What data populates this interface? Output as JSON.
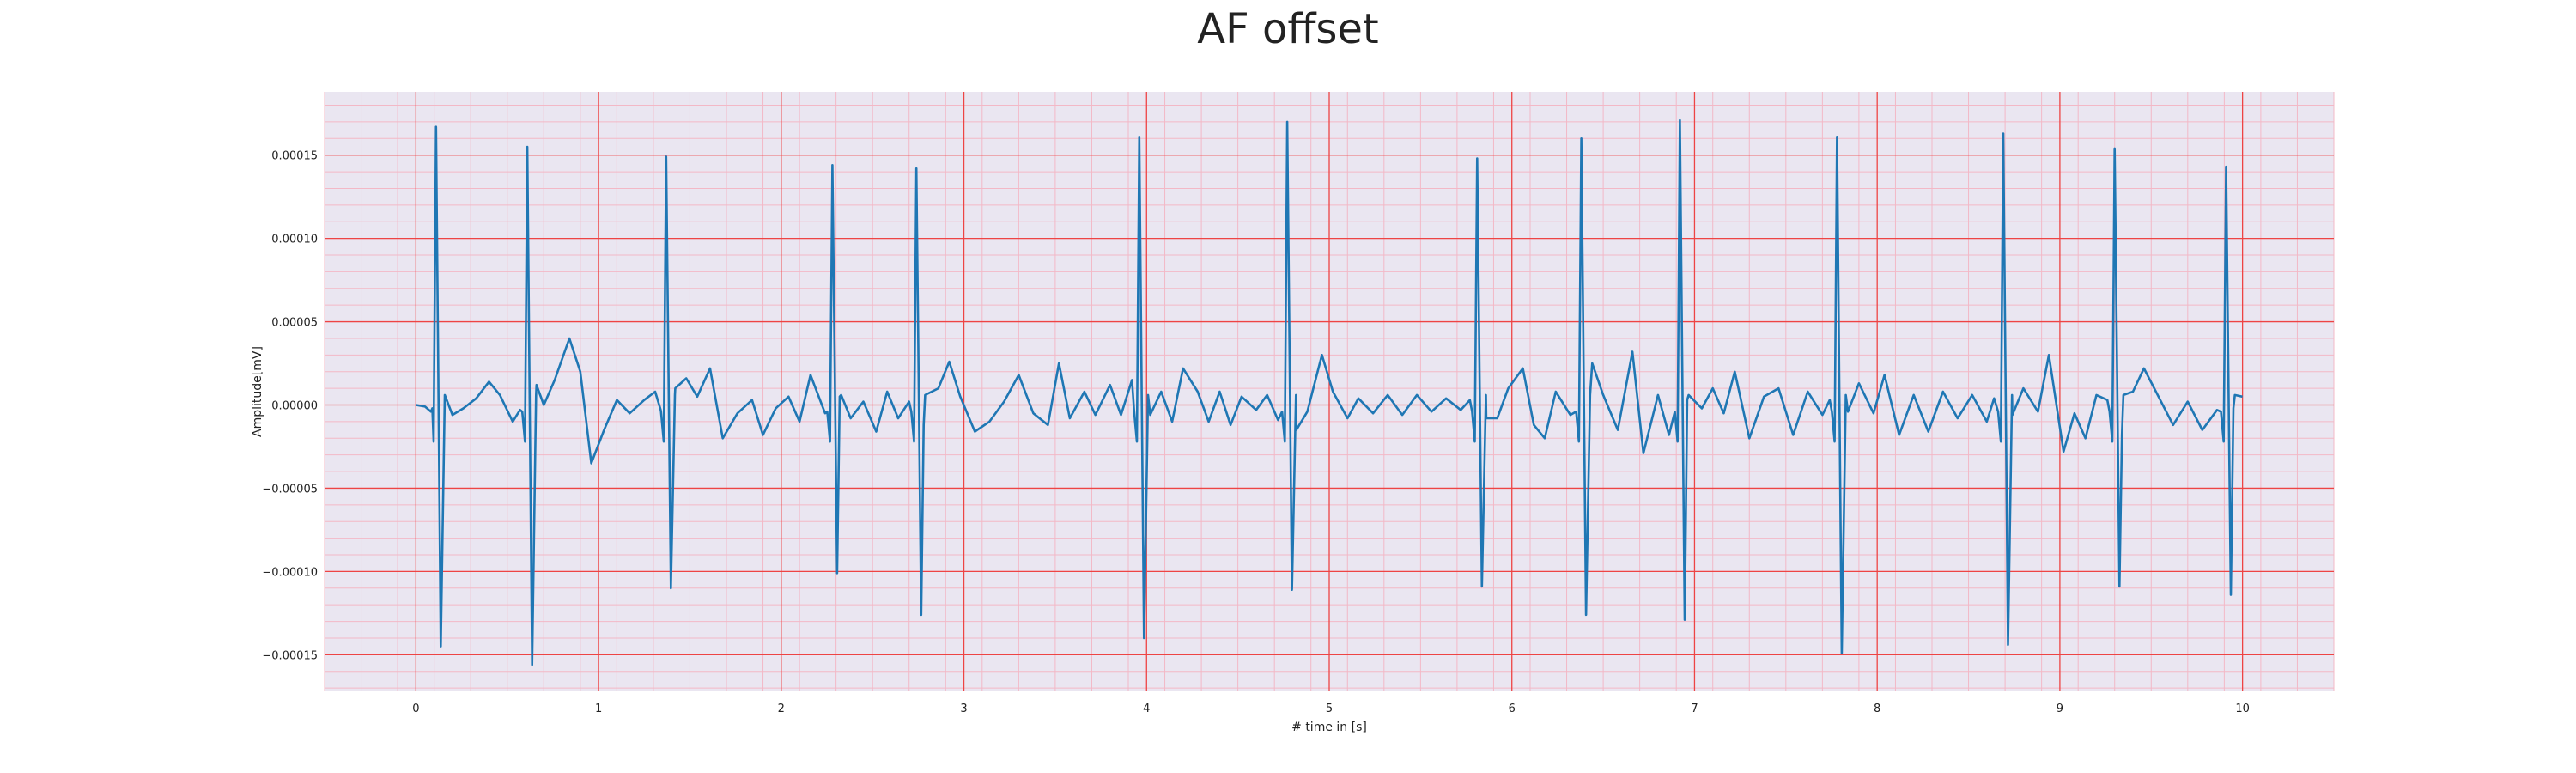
{
  "chart_data": {
    "type": "line",
    "title": "AF offset",
    "xlabel": "# time in [s]",
    "ylabel": "Amplitude[mV]",
    "xlim": [
      -0.5,
      10.5
    ],
    "ylim": [
      -0.000172,
      0.000188
    ],
    "x_ticks": [
      0,
      1,
      2,
      3,
      4,
      5,
      6,
      7,
      8,
      9,
      10
    ],
    "x_tick_labels": [
      "0",
      "1",
      "2",
      "3",
      "4",
      "5",
      "6",
      "7",
      "8",
      "9",
      "10"
    ],
    "y_ticks": [
      -0.00015,
      -0.0001,
      -5e-05,
      0,
      5e-05,
      0.0001,
      0.00015
    ],
    "y_tick_labels": [
      "−0.00015",
      "−0.00010",
      "−0.00005",
      "0.00000",
      "0.00005",
      "0.00010",
      "0.00015"
    ],
    "grid": true,
    "colors": {
      "line": "#1f77b4",
      "plot_bg": "#eae6f1",
      "major_grid": "#ee4444",
      "minor_grid": "#f3b8c6"
    },
    "series": [
      {
        "beats": [
          {
            "t": 0.11,
            "peak": 0.000167,
            "trough": -0.000145
          },
          {
            "t": 0.61,
            "peak": 0.000155,
            "trough": -0.000156
          },
          {
            "t": 1.37,
            "peak": 0.000149,
            "trough": -0.00011
          },
          {
            "t": 2.28,
            "peak": 0.000144,
            "trough": -0.000101
          },
          {
            "t": 2.74,
            "peak": 0.000142,
            "trough": -0.000126
          },
          {
            "t": 3.96,
            "peak": 0.000161,
            "trough": -0.00014
          },
          {
            "t": 4.77,
            "peak": 0.00017,
            "trough": -0.000111
          },
          {
            "t": 5.81,
            "peak": 0.000148,
            "trough": -0.000109
          },
          {
            "t": 6.38,
            "peak": 0.00016,
            "trough": -0.000126
          },
          {
            "t": 6.92,
            "peak": 0.000171,
            "trough": -0.000129
          },
          {
            "t": 7.78,
            "peak": 0.000161,
            "trough": -0.000149
          },
          {
            "t": 8.69,
            "peak": 0.000163,
            "trough": -0.000144
          },
          {
            "t": 9.3,
            "peak": 0.000154,
            "trough": -0.000109
          },
          {
            "t": 9.91,
            "peak": 0.000143,
            "trough": -0.000114
          }
        ],
        "baseline": [
          [
            0.0,
            0.0
          ],
          [
            0.05,
            -1e-06
          ],
          [
            0.09,
            -2e-06
          ],
          [
            0.2,
            -6e-06
          ],
          [
            0.26,
            -2e-06
          ],
          [
            0.33,
            4e-06
          ],
          [
            0.4,
            1.4e-05
          ],
          [
            0.46,
            6e-06
          ],
          [
            0.53,
            -1e-05
          ],
          [
            0.57,
            -3e-06
          ],
          [
            0.66,
            1.2e-05
          ],
          [
            0.7,
            0.0
          ],
          [
            0.76,
            1.5e-05
          ],
          [
            0.84,
            4e-05
          ],
          [
            0.9,
            2e-05
          ],
          [
            0.96,
            -3.5e-05
          ],
          [
            1.03,
            -1.5e-05
          ],
          [
            1.1,
            3e-06
          ],
          [
            1.17,
            -5e-06
          ],
          [
            1.25,
            3e-06
          ],
          [
            1.31,
            8e-06
          ],
          [
            1.34,
            -3e-06
          ],
          [
            1.42,
            1e-05
          ],
          [
            1.48,
            1.6e-05
          ],
          [
            1.54,
            5e-06
          ],
          [
            1.61,
            2.2e-05
          ],
          [
            1.68,
            -2e-05
          ],
          [
            1.76,
            -5e-06
          ],
          [
            1.84,
            3e-06
          ],
          [
            1.9,
            -1.8e-05
          ],
          [
            1.97,
            -2e-06
          ],
          [
            2.04,
            5e-06
          ],
          [
            2.1,
            -1e-05
          ],
          [
            2.16,
            1.8e-05
          ],
          [
            2.24,
            -5e-06
          ],
          [
            2.32,
            5e-06
          ],
          [
            2.38,
            -8e-06
          ],
          [
            2.45,
            2e-06
          ],
          [
            2.52,
            -1.6e-05
          ],
          [
            2.58,
            8e-06
          ],
          [
            2.64,
            -8e-06
          ],
          [
            2.7,
            2e-06
          ],
          [
            2.78,
            -1.2e-05
          ],
          [
            2.86,
            1e-05
          ],
          [
            2.92,
            2.6e-05
          ],
          [
            2.98,
            5e-06
          ],
          [
            3.06,
            -1.6e-05
          ],
          [
            3.14,
            -1e-05
          ],
          [
            3.22,
            2e-06
          ],
          [
            3.3,
            1.8e-05
          ],
          [
            3.38,
            -5e-06
          ],
          [
            3.46,
            -1.2e-05
          ],
          [
            3.52,
            2.5e-05
          ],
          [
            3.58,
            -8e-06
          ],
          [
            3.66,
            8e-06
          ],
          [
            3.72,
            -6e-06
          ],
          [
            3.8,
            1.2e-05
          ],
          [
            3.86,
            -6e-06
          ],
          [
            3.92,
            1.5e-05
          ],
          [
            4.02,
            -6e-06
          ],
          [
            4.08,
            8e-06
          ],
          [
            4.14,
            -1e-05
          ],
          [
            4.2,
            2.2e-05
          ],
          [
            4.28,
            8e-06
          ],
          [
            4.34,
            -1e-05
          ],
          [
            4.4,
            8e-06
          ],
          [
            4.46,
            -1.2e-05
          ],
          [
            4.52,
            5e-06
          ],
          [
            4.6,
            -3e-06
          ],
          [
            4.66,
            6e-06
          ],
          [
            4.72,
            -9e-06
          ],
          [
            4.82,
            -1.5e-05
          ],
          [
            4.88,
            -4e-06
          ],
          [
            4.96,
            3e-05
          ],
          [
            5.02,
            8e-06
          ],
          [
            5.1,
            -8e-06
          ],
          [
            5.16,
            4e-06
          ],
          [
            5.24,
            -5e-06
          ],
          [
            5.32,
            6e-06
          ],
          [
            5.4,
            -6e-06
          ],
          [
            5.48,
            6e-06
          ],
          [
            5.56,
            -4e-06
          ],
          [
            5.64,
            4e-06
          ],
          [
            5.72,
            -3e-06
          ],
          [
            5.77,
            3e-06
          ],
          [
            5.86,
            -8e-06
          ],
          [
            5.92,
            -8e-06
          ],
          [
            5.98,
            1e-05
          ],
          [
            6.06,
            2.2e-05
          ],
          [
            6.12,
            -1.2e-05
          ],
          [
            6.18,
            -2e-05
          ],
          [
            6.24,
            8e-06
          ],
          [
            6.32,
            -6e-06
          ],
          [
            6.44,
            2.5e-05
          ],
          [
            6.5,
            6e-06
          ],
          [
            6.58,
            -1.5e-05
          ],
          [
            6.66,
            3.2e-05
          ],
          [
            6.72,
            -2.9e-05
          ],
          [
            6.8,
            6e-06
          ],
          [
            6.86,
            -1.8e-05
          ],
          [
            6.96,
            3e-06
          ],
          [
            7.04,
            -2e-06
          ],
          [
            7.1,
            1e-05
          ],
          [
            7.16,
            -5e-06
          ],
          [
            7.22,
            2e-05
          ],
          [
            7.3,
            -2e-05
          ],
          [
            7.38,
            5e-06
          ],
          [
            7.46,
            1e-05
          ],
          [
            7.54,
            -1.8e-05
          ],
          [
            7.62,
            8e-06
          ],
          [
            7.7,
            -6e-06
          ],
          [
            7.74,
            3e-06
          ],
          [
            7.84,
            -4e-06
          ],
          [
            7.9,
            1.3e-05
          ],
          [
            7.98,
            -5e-06
          ],
          [
            8.04,
            1.8e-05
          ],
          [
            8.12,
            -1.8e-05
          ],
          [
            8.2,
            6e-06
          ],
          [
            8.28,
            -1.6e-05
          ],
          [
            8.36,
            8e-06
          ],
          [
            8.44,
            -8e-06
          ],
          [
            8.52,
            6e-06
          ],
          [
            8.6,
            -1e-05
          ],
          [
            8.64,
            4e-06
          ],
          [
            8.74,
            -6e-06
          ],
          [
            8.8,
            1e-05
          ],
          [
            8.88,
            -4e-06
          ],
          [
            8.94,
            3e-05
          ],
          [
            9.02,
            -2.8e-05
          ],
          [
            9.08,
            -5e-06
          ],
          [
            9.14,
            -2e-05
          ],
          [
            9.2,
            6e-06
          ],
          [
            9.26,
            3e-06
          ],
          [
            9.34,
            -1.8e-05
          ],
          [
            9.4,
            8e-06
          ],
          [
            9.46,
            2.2e-05
          ],
          [
            9.54,
            5e-06
          ],
          [
            9.62,
            -1.2e-05
          ],
          [
            9.7,
            2e-06
          ],
          [
            9.78,
            -1.5e-05
          ],
          [
            9.86,
            -3e-06
          ],
          [
            9.95,
            -2e-06
          ],
          [
            10.0,
            5e-06
          ]
        ]
      }
    ]
  }
}
